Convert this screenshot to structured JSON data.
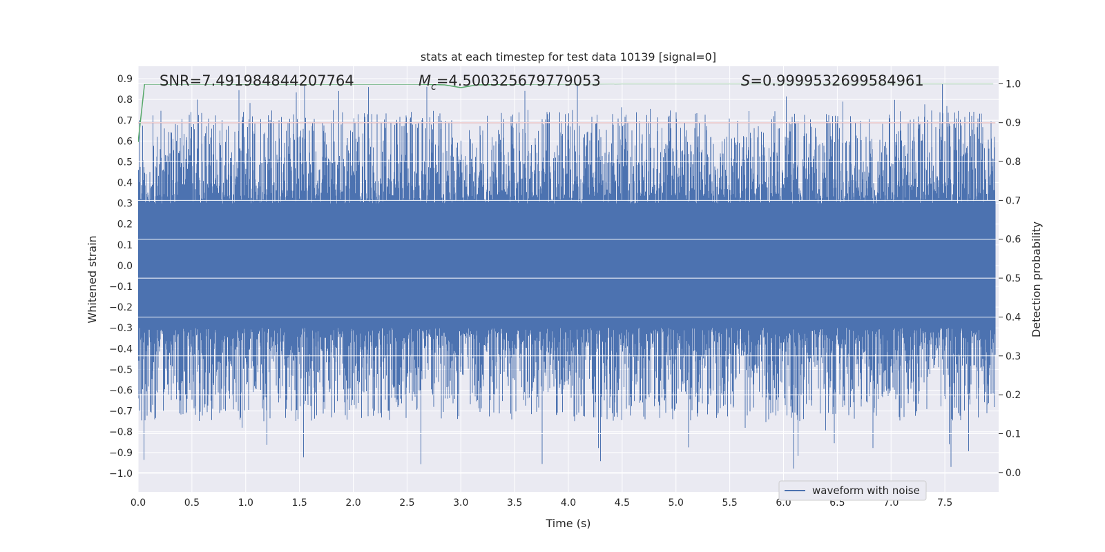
{
  "chart_data": {
    "type": "line",
    "title": "stats at each timestep for test data 10139 [signal=0]",
    "xlabel": "Time (s)",
    "ylabel_left": "Whitened strain",
    "ylabel_right": "Detection probability",
    "xlim": [
      0.0,
      8.0
    ],
    "ylim_left": [
      -1.09,
      0.96
    ],
    "ylim_right": [
      -0.05,
      1.045
    ],
    "x_ticks": [
      "0.0",
      "0.5",
      "1.0",
      "1.5",
      "2.0",
      "2.5",
      "3.0",
      "3.5",
      "4.0",
      "4.5",
      "5.0",
      "5.5",
      "6.0",
      "6.5",
      "7.0",
      "7.5"
    ],
    "y_left_ticks": [
      "0.9",
      "0.8",
      "0.7",
      "0.6",
      "0.5",
      "0.4",
      "0.3",
      "0.2",
      "0.1",
      "0.0",
      "−0.1",
      "−0.2",
      "−0.3",
      "−0.4",
      "−0.5",
      "−0.6",
      "−0.7",
      "−0.8",
      "−0.9",
      "−1.0"
    ],
    "y_right_ticks": [
      "1.0",
      "0.9",
      "0.8",
      "0.7",
      "0.6",
      "0.5",
      "0.4",
      "0.3",
      "0.2",
      "0.1",
      "0.0"
    ],
    "annotations": {
      "snr": "SNR=7.491984844207764",
      "mc_symbol": "M",
      "mc_subscript": "c",
      "mc_value": "=4.500325679779053",
      "s_symbol": "S",
      "s_value": "=0.9999532699584961"
    },
    "series": [
      {
        "name": "waveform with noise",
        "axis": "left",
        "color": "#4c72b0",
        "description": "noisy whitened strain, bulk within about ±0.3, peaks up to ~0.88 and troughs down to ~−1.0"
      },
      {
        "name": "threshold",
        "axis": "right",
        "color": "#c44e52",
        "y": 0.9
      },
      {
        "name": "detection probability",
        "axis": "right",
        "color": "#55a868",
        "x": [
          0.0,
          0.06,
          2.6,
          2.85,
          3.0,
          3.15,
          3.5,
          4.5,
          7.95
        ],
        "y": [
          0.85,
          0.999,
          0.999,
          0.997,
          0.99,
          0.997,
          0.999,
          1.0,
          1.0
        ]
      }
    ],
    "legend": {
      "location": "lower-right",
      "entries": [
        "waveform with noise"
      ]
    },
    "colors": {
      "plot_background": "#eaeaf2",
      "grid": "#ffffff",
      "waveform": "#4c72b0",
      "threshold": "#c44e52",
      "probability": "#55a868"
    }
  }
}
